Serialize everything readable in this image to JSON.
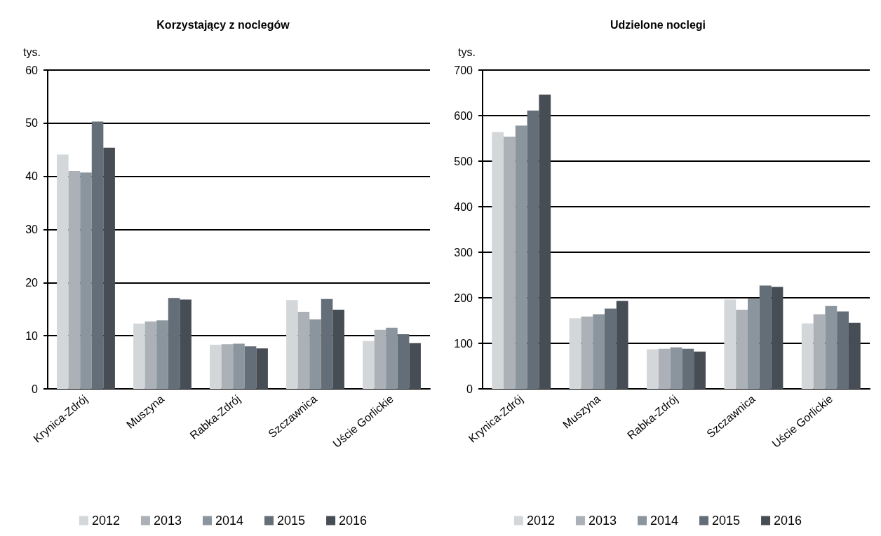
{
  "chart_data": [
    {
      "type": "bar",
      "title": "Korzystający z noclegów",
      "ylabel": "tys.",
      "categories": [
        "Krynica-Zdrój",
        "Muszyna",
        "Rabka-Zdrój",
        "Szczawnica",
        "Uście Gorlickie"
      ],
      "series": [
        {
          "name": "2012",
          "color": "#d4d7da",
          "values": [
            44.1,
            12.3,
            8.3,
            16.7,
            9.0
          ]
        },
        {
          "name": "2013",
          "color": "#abb1b7",
          "values": [
            41.0,
            12.7,
            8.4,
            14.5,
            11.1
          ]
        },
        {
          "name": "2014",
          "color": "#8b959e",
          "values": [
            40.7,
            12.9,
            8.5,
            13.1,
            11.5
          ]
        },
        {
          "name": "2015",
          "color": "#646e78",
          "values": [
            50.3,
            17.1,
            8.0,
            16.9,
            10.3
          ]
        },
        {
          "name": "2016",
          "color": "#474d54",
          "values": [
            45.4,
            16.8,
            7.6,
            14.9,
            8.6
          ]
        }
      ],
      "ylim": [
        0,
        60
      ],
      "yticks": [
        0,
        10,
        20,
        30,
        40,
        50,
        60
      ],
      "grid": "y",
      "legend": "bottom"
    },
    {
      "type": "bar",
      "title": "Udzielone noclegi",
      "ylabel": "tys.",
      "categories": [
        "Krynica-Zdrój",
        "Muszyna",
        "Rabka-Zdrój",
        "Szczawnica",
        "Uście Gorlickie"
      ],
      "series": [
        {
          "name": "2012",
          "color": "#d4d7da",
          "values": [
            564,
            155,
            87,
            196,
            144
          ]
        },
        {
          "name": "2013",
          "color": "#abb1b7",
          "values": [
            554,
            159,
            88,
            174,
            164
          ]
        },
        {
          "name": "2014",
          "color": "#8b959e",
          "values": [
            578,
            164,
            91,
            198,
            182
          ]
        },
        {
          "name": "2015",
          "color": "#646e78",
          "values": [
            611,
            176,
            88,
            227,
            170
          ]
        },
        {
          "name": "2016",
          "color": "#474d54",
          "values": [
            646,
            193,
            82,
            224,
            145
          ]
        }
      ],
      "ylim": [
        0,
        700
      ],
      "yticks": [
        0,
        100,
        200,
        300,
        400,
        500,
        600,
        700
      ],
      "grid": "y",
      "legend": "bottom"
    }
  ]
}
